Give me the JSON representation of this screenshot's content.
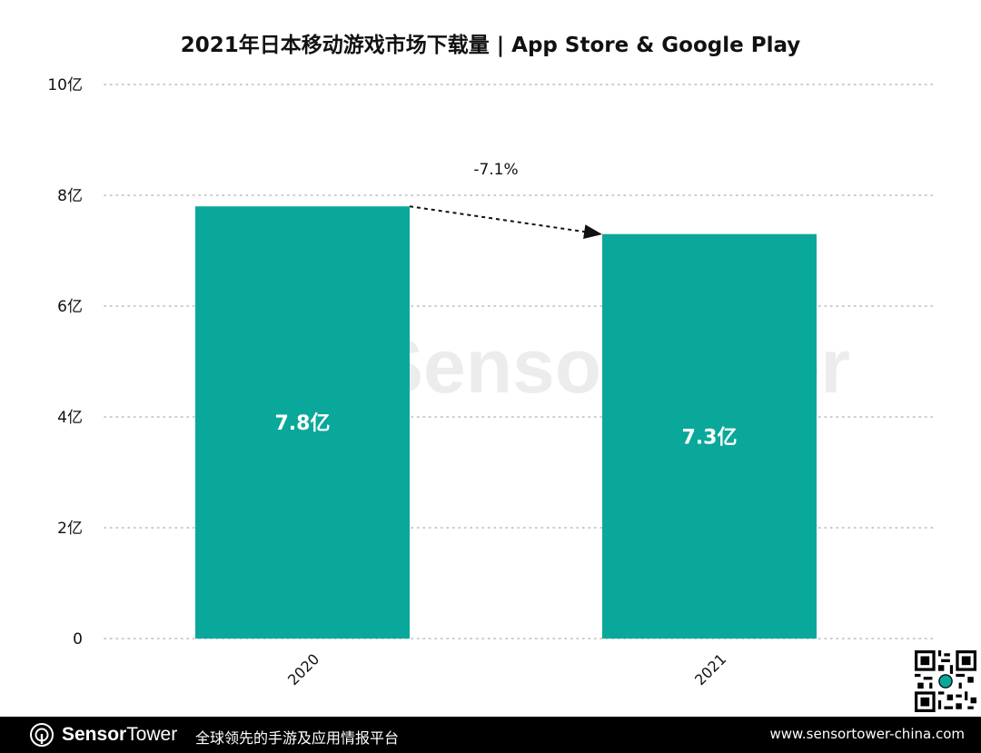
{
  "chart_data": {
    "type": "bar",
    "title": "2021年日本移动游戏市场下载量 | App Store & Google Play",
    "categories": [
      "2020",
      "2021"
    ],
    "values": [
      7.8,
      7.3
    ],
    "value_labels": [
      "7.8亿",
      "7.3亿"
    ],
    "unit": "亿",
    "ylim": [
      0,
      10
    ],
    "yticks": [
      0,
      2,
      4,
      6,
      8,
      10
    ],
    "ytick_labels": [
      "0",
      "2亿",
      "4亿",
      "6亿",
      "8亿",
      "10亿"
    ],
    "grid": true,
    "annotation": "-7.1%",
    "bar_color": "#0aa89a",
    "watermark": "SensorTower"
  },
  "footer": {
    "brand_part1": "Sensor",
    "brand_part2": "Tower",
    "slogan": "全球领先的手游及应用情报平台",
    "url": "www.sensortower-china.com"
  },
  "colors": {
    "footer_bg": "#000000",
    "grid": "#bbbbbb",
    "text": "#111111"
  }
}
